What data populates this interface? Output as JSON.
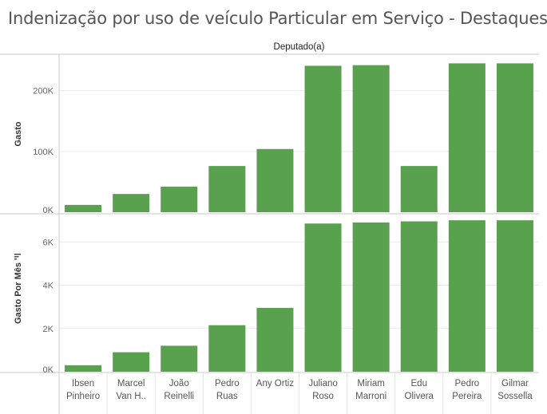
{
  "title": "Indenização por uso de veículo Particular em Serviço - Destaques",
  "colors": {
    "bar": "#59a14f",
    "grid": "#ececec",
    "divider": "#c8c8c8"
  },
  "chart_data": [
    {
      "type": "bar",
      "column_header": "Deputado(a)",
      "ylabel": "Gasto",
      "ylim": [
        0,
        260000
      ],
      "yticks": [
        0,
        100000,
        200000
      ],
      "ytick_labels": [
        "0K",
        "100K",
        "200K"
      ],
      "categories": [
        [
          "Ibsen",
          "Pinheiro"
        ],
        [
          "Marcel",
          "Van H.."
        ],
        [
          "João",
          "Reinelli"
        ],
        [
          "Pedro",
          "Ruas"
        ],
        [
          "Any Ortiz"
        ],
        [
          "Juliano",
          "Roso"
        ],
        [
          "Miriam",
          "Marroni"
        ],
        [
          "Edu",
          "Olivera"
        ],
        [
          "Pedro",
          "Pereira"
        ],
        [
          "Gilmar",
          "Sossella"
        ]
      ],
      "values": [
        12000,
        30000,
        42000,
        76000,
        104000,
        241000,
        242000,
        76000,
        245000,
        245000
      ]
    },
    {
      "type": "bar",
      "ylabel": "Gasto Por Mês",
      "ylim": [
        0,
        7300
      ],
      "yticks": [
        0,
        2000,
        4000,
        6000
      ],
      "ytick_labels": [
        "0K",
        "2K",
        "4K",
        "6K"
      ],
      "categories": [
        [
          "Ibsen",
          "Pinheiro"
        ],
        [
          "Marcel",
          "Van H.."
        ],
        [
          "João",
          "Reinelli"
        ],
        [
          "Pedro",
          "Ruas"
        ],
        [
          "Any Ortiz"
        ],
        [
          "Juliano",
          "Roso"
        ],
        [
          "Miriam",
          "Marroni"
        ],
        [
          "Edu",
          "Olivera"
        ],
        [
          "Pedro",
          "Pereira"
        ],
        [
          "Gilmar",
          "Sossella"
        ]
      ],
      "values": [
        300,
        900,
        1200,
        2150,
        2950,
        6850,
        6900,
        6950,
        7000,
        7000
      ]
    }
  ]
}
